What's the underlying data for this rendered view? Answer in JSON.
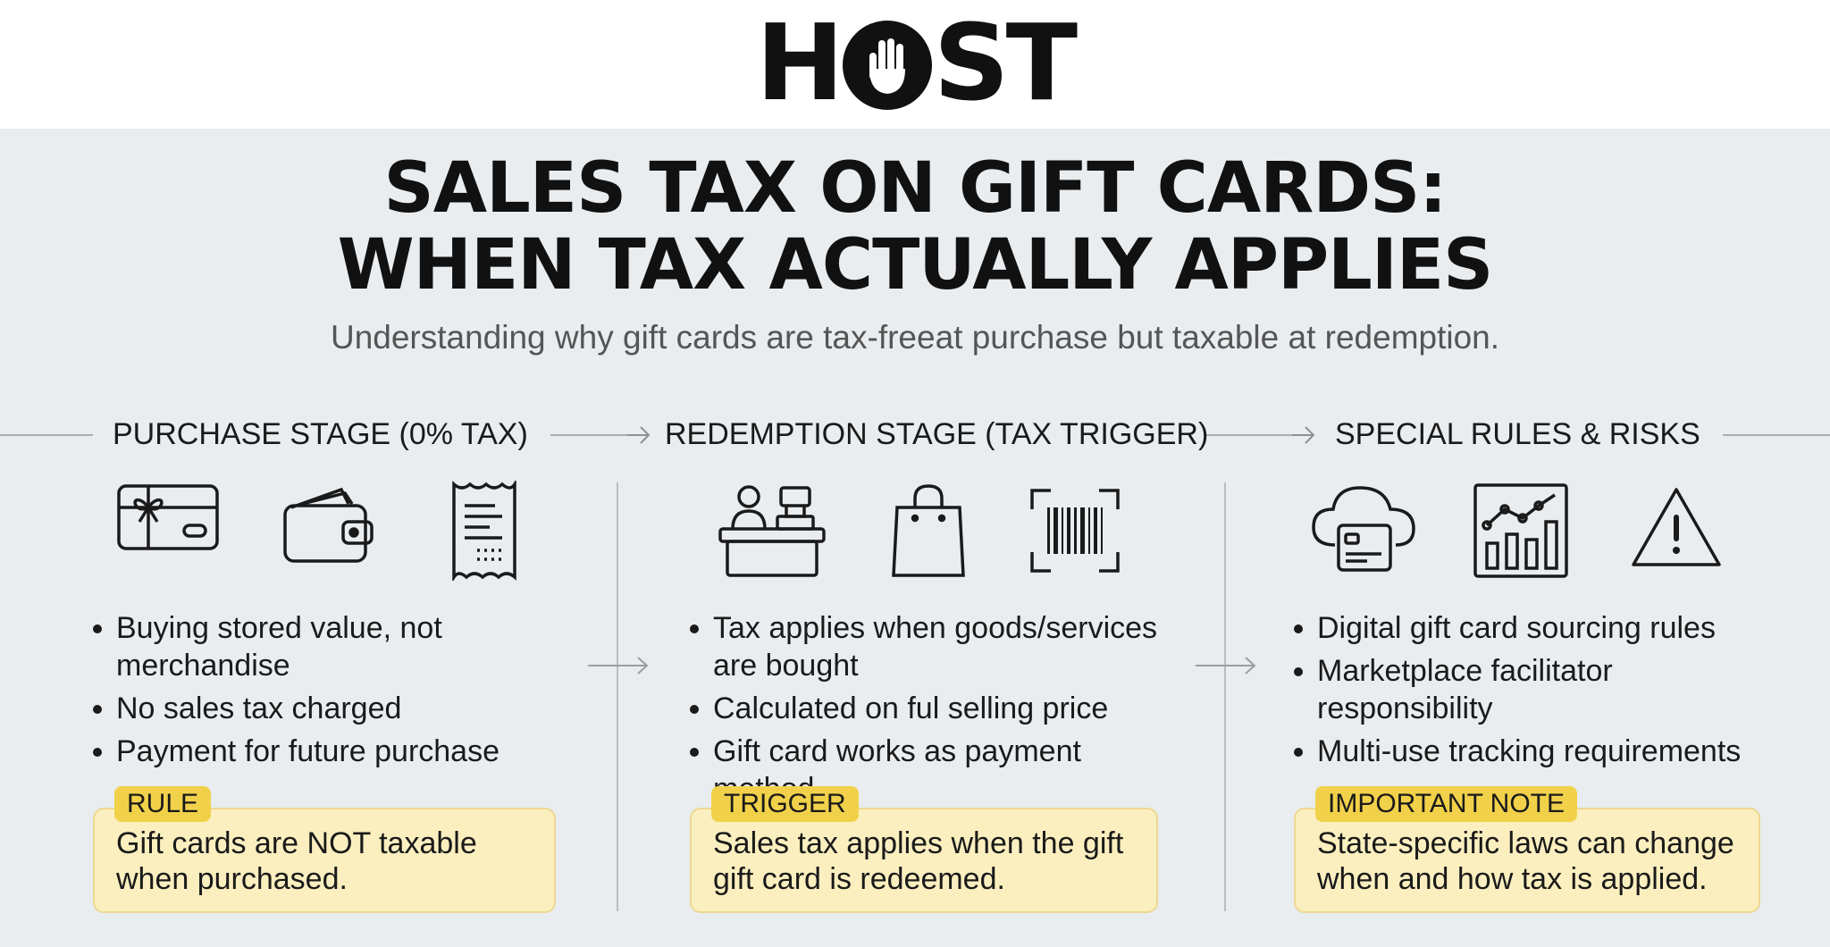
{
  "brand": {
    "logo_text_pre": "H",
    "logo_text_post": "ST",
    "logo_icon": "hand-icon"
  },
  "title": {
    "line1": "SALES TAX ON GIFT CARDS:",
    "line2": "WHEN TAX ACTUALLY APPLIES",
    "subtitle": "Understanding why gift cards are tax-freeat purchase but taxable at redemption."
  },
  "colors": {
    "note_fill": "#fbefbf",
    "tag_fill": "#f2d14a",
    "background": "#e9edf0"
  },
  "stages": [
    {
      "title": "PURCHASE STAGE (0% TAX)",
      "icons": [
        "gift-card-icon",
        "wallet-icon",
        "receipt-icon"
      ],
      "bullets": [
        "Buying stored value, not merchandise",
        "No sales tax charged",
        "Payment for future purchase"
      ],
      "tag": "RULE",
      "note": "Gift cards are NOT taxable when purchased."
    },
    {
      "title": "REDEMPTION STAGE (TAX TRIGGER)",
      "icons": [
        "cashier-icon",
        "shopping-bag-icon",
        "barcode-scan-icon"
      ],
      "bullets": [
        "Tax applies when goods/services are bought",
        "Calculated on ful selling price",
        "Gift card works as payment method"
      ],
      "tag": "TRIGGER",
      "note": "Sales tax applies when the gift gift card is redeemed."
    },
    {
      "title": "SPECIAL RULES & RISKS",
      "icons": [
        "cloud-card-icon",
        "chart-icon",
        "warning-icon"
      ],
      "bullets": [
        "Digital gift card sourcing rules",
        "Marketplace facilitator responsibility",
        "Multi-use tracking requirements"
      ],
      "tag": "IMPORTANT NOTE",
      "note": "State-specific laws can change when and how tax is applied."
    }
  ]
}
